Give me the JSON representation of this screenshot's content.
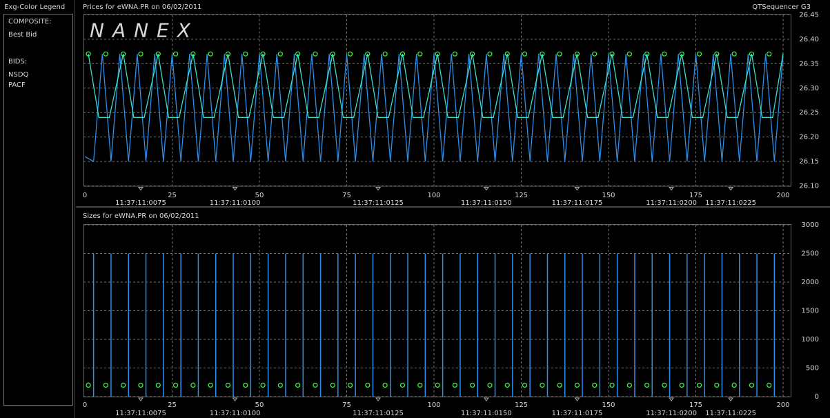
{
  "legend": {
    "title": "Exg-Color Legend",
    "groups": [
      "COMPOSITE:",
      "BIDS:"
    ]
  },
  "chart_data": [
    {
      "type": "line",
      "title": "Prices for  eWNA.PR  on  06/02/2011",
      "corner_label": "QTSequencer G3",
      "watermark": "NANEX",
      "grid": true,
      "xlim": [
        0,
        200
      ],
      "xticks": [
        0,
        25,
        50,
        75,
        100,
        125,
        150,
        175,
        200
      ],
      "ylim": [
        26.1,
        26.45
      ],
      "yticks": [
        {
          "value": 26.1,
          "label": "26.10"
        },
        26.15,
        {
          "value": 26.2,
          "label": "26.20"
        },
        26.25,
        {
          "value": 26.3,
          "label": "26.30"
        },
        26.35,
        {
          "value": 26.4,
          "label": "26.40"
        },
        26.45
      ],
      "time_labels": [
        {
          "x": 16,
          "label": "11:37:11:0075"
        },
        {
          "x": 43,
          "label": "11:37:11:0100"
        },
        {
          "x": 84,
          "label": "11:37:11:0125"
        },
        {
          "x": 115,
          "label": "11:37:11:0150"
        },
        {
          "x": 141,
          "label": "11:37:11:0175"
        },
        {
          "x": 168,
          "label": "11:37:11:0200"
        },
        {
          "x": 185,
          "label": "11:37:11:0225"
        }
      ],
      "series": [
        {
          "name": "Best Bid",
          "group": 0,
          "type": "scatter",
          "color": "#3cff3c",
          "x": [
            1,
            6,
            11,
            16,
            21,
            26,
            31,
            36,
            41,
            46,
            51,
            56,
            61,
            66,
            71,
            76,
            81,
            86,
            91,
            96,
            101,
            106,
            111,
            116,
            121,
            126,
            131,
            136,
            141,
            146,
            151,
            156,
            161,
            166,
            171,
            176,
            181,
            186,
            191,
            196
          ],
          "values": [
            26.37,
            26.37,
            26.37,
            26.37,
            26.37,
            26.37,
            26.37,
            26.37,
            26.37,
            26.37,
            26.37,
            26.37,
            26.37,
            26.37,
            26.37,
            26.37,
            26.37,
            26.37,
            26.37,
            26.37,
            26.37,
            26.37,
            26.37,
            26.37,
            26.37,
            26.37,
            26.37,
            26.37,
            26.37,
            26.37,
            26.37,
            26.37,
            26.37,
            26.37,
            26.37,
            26.37,
            26.37,
            26.37,
            26.37,
            26.37
          ]
        },
        {
          "name": "NSDQ",
          "group": 1,
          "type": "line",
          "color": "#2e8fe8",
          "x": [
            0,
            2.5,
            5,
            7.5,
            10,
            12.5,
            15,
            17.5,
            20,
            22.5,
            25,
            27.5,
            30,
            32.5,
            35,
            37.5,
            40,
            42.5,
            45,
            47.5,
            50,
            52.5,
            55,
            57.5,
            60,
            62.5,
            65,
            67.5,
            70,
            72.5,
            75,
            77.5,
            80,
            82.5,
            85,
            87.5,
            90,
            92.5,
            95,
            97.5,
            100,
            102.5,
            105,
            107.5,
            110,
            112.5,
            115,
            117.5,
            120,
            122.5,
            125,
            127.5,
            130,
            132.5,
            135,
            137.5,
            140,
            142.5,
            145,
            147.5,
            150,
            152.5,
            155,
            157.5,
            160,
            162.5,
            165,
            167.5,
            170,
            172.5,
            175,
            177.5,
            180,
            182.5,
            185,
            187.5,
            190,
            192.5,
            195,
            197.5,
            200
          ],
          "values": [
            26.16,
            26.15,
            26.37,
            26.15,
            26.37,
            26.15,
            26.37,
            26.15,
            26.37,
            26.15,
            26.37,
            26.15,
            26.37,
            26.15,
            26.37,
            26.15,
            26.37,
            26.15,
            26.37,
            26.15,
            26.37,
            26.15,
            26.37,
            26.15,
            26.37,
            26.15,
            26.37,
            26.15,
            26.37,
            26.15,
            26.37,
            26.15,
            26.37,
            26.15,
            26.37,
            26.15,
            26.37,
            26.15,
            26.37,
            26.15,
            26.37,
            26.15,
            26.37,
            26.15,
            26.37,
            26.15,
            26.37,
            26.15,
            26.37,
            26.15,
            26.37,
            26.15,
            26.37,
            26.15,
            26.37,
            26.15,
            26.37,
            26.15,
            26.37,
            26.15,
            26.37,
            26.15,
            26.37,
            26.15,
            26.37,
            26.15,
            26.37,
            26.15,
            26.37,
            26.15,
            26.37,
            26.15,
            26.37,
            26.15,
            26.37,
            26.15,
            26.37,
            26.15,
            26.37,
            26.15,
            26.37
          ]
        },
        {
          "name": "PACF",
          "group": 1,
          "type": "line",
          "color": "#3ee0c8",
          "x": [
            1,
            4,
            7,
            11,
            14,
            17,
            21,
            24,
            27,
            31,
            34,
            37,
            41,
            44,
            47,
            51,
            54,
            57,
            61,
            64,
            67,
            71,
            74,
            77,
            81,
            84,
            87,
            91,
            94,
            97,
            101,
            104,
            107,
            111,
            114,
            117,
            121,
            124,
            127,
            131,
            134,
            137,
            141,
            144,
            147,
            151,
            154,
            157,
            161,
            164,
            167,
            171,
            174,
            177,
            181,
            184,
            187,
            191,
            194,
            197,
            200
          ],
          "values": [
            26.37,
            26.24,
            26.24,
            26.37,
            26.24,
            26.24,
            26.37,
            26.24,
            26.24,
            26.37,
            26.24,
            26.24,
            26.37,
            26.24,
            26.24,
            26.37,
            26.24,
            26.24,
            26.37,
            26.24,
            26.24,
            26.37,
            26.24,
            26.24,
            26.37,
            26.24,
            26.24,
            26.37,
            26.24,
            26.24,
            26.37,
            26.24,
            26.24,
            26.37,
            26.24,
            26.24,
            26.37,
            26.24,
            26.24,
            26.37,
            26.24,
            26.24,
            26.37,
            26.24,
            26.24,
            26.37,
            26.24,
            26.24,
            26.37,
            26.24,
            26.24,
            26.37,
            26.24,
            26.24,
            26.37,
            26.24,
            26.24,
            26.37,
            26.24,
            26.24,
            26.37
          ]
        }
      ]
    },
    {
      "type": "bar",
      "title": "Sizes for  eWNA.PR  on  06/02/2011",
      "grid": true,
      "xlim": [
        0,
        200
      ],
      "xticks": [
        0,
        25,
        50,
        75,
        100,
        125,
        150,
        175,
        200
      ],
      "ylim": [
        0,
        3000
      ],
      "yticks": [
        0,
        500,
        1000,
        1500,
        2000,
        2500,
        3000
      ],
      "time_labels": [
        {
          "x": 16,
          "label": "11:37:11:0075"
        },
        {
          "x": 43,
          "label": "11:37:11:0100"
        },
        {
          "x": 84,
          "label": "11:37:11:0125"
        },
        {
          "x": 115,
          "label": "11:37:11:0150"
        },
        {
          "x": 141,
          "label": "11:37:11:0175"
        },
        {
          "x": 168,
          "label": "11:37:11:0200"
        },
        {
          "x": 185,
          "label": "11:37:11:0225"
        }
      ],
      "series": [
        {
          "name": "NSDQ",
          "type": "bar",
          "color": "#2e8fe8",
          "x": [
            2.5,
            7.5,
            12.5,
            17.5,
            22.5,
            27.5,
            32.5,
            37.5,
            42.5,
            47.5,
            52.5,
            57.5,
            62.5,
            67.5,
            72.5,
            77.5,
            82.5,
            87.5,
            92.5,
            97.5,
            102.5,
            107.5,
            112.5,
            117.5,
            122.5,
            127.5,
            132.5,
            137.5,
            142.5,
            147.5,
            152.5,
            157.5,
            162.5,
            167.5,
            172.5,
            177.5,
            182.5,
            187.5,
            192.5,
            197.5
          ],
          "values": [
            2500,
            2500,
            2500,
            2500,
            2500,
            2500,
            2500,
            2500,
            2500,
            2500,
            2500,
            2500,
            2500,
            2500,
            2500,
            2500,
            2500,
            2500,
            2500,
            2500,
            2500,
            2500,
            2500,
            2500,
            2500,
            2500,
            2500,
            2500,
            2500,
            2500,
            2500,
            2500,
            2500,
            2500,
            2500,
            2500,
            2500,
            2500,
            2500,
            2500
          ]
        },
        {
          "name": "Best Bid",
          "type": "scatter",
          "color": "#3cff3c",
          "x": [
            1,
            6,
            11,
            16,
            21,
            26,
            31,
            36,
            41,
            46,
            51,
            56,
            61,
            66,
            71,
            76,
            81,
            86,
            91,
            96,
            101,
            106,
            111,
            116,
            121,
            126,
            131,
            136,
            141,
            146,
            151,
            156,
            161,
            166,
            171,
            176,
            181,
            186,
            191,
            196
          ],
          "values": [
            200,
            200,
            200,
            200,
            200,
            200,
            200,
            200,
            200,
            200,
            200,
            200,
            200,
            200,
            200,
            200,
            200,
            200,
            200,
            200,
            200,
            200,
            200,
            200,
            200,
            200,
            200,
            200,
            200,
            200,
            200,
            200,
            200,
            200,
            200,
            200,
            200,
            200,
            200,
            200
          ]
        }
      ]
    }
  ]
}
